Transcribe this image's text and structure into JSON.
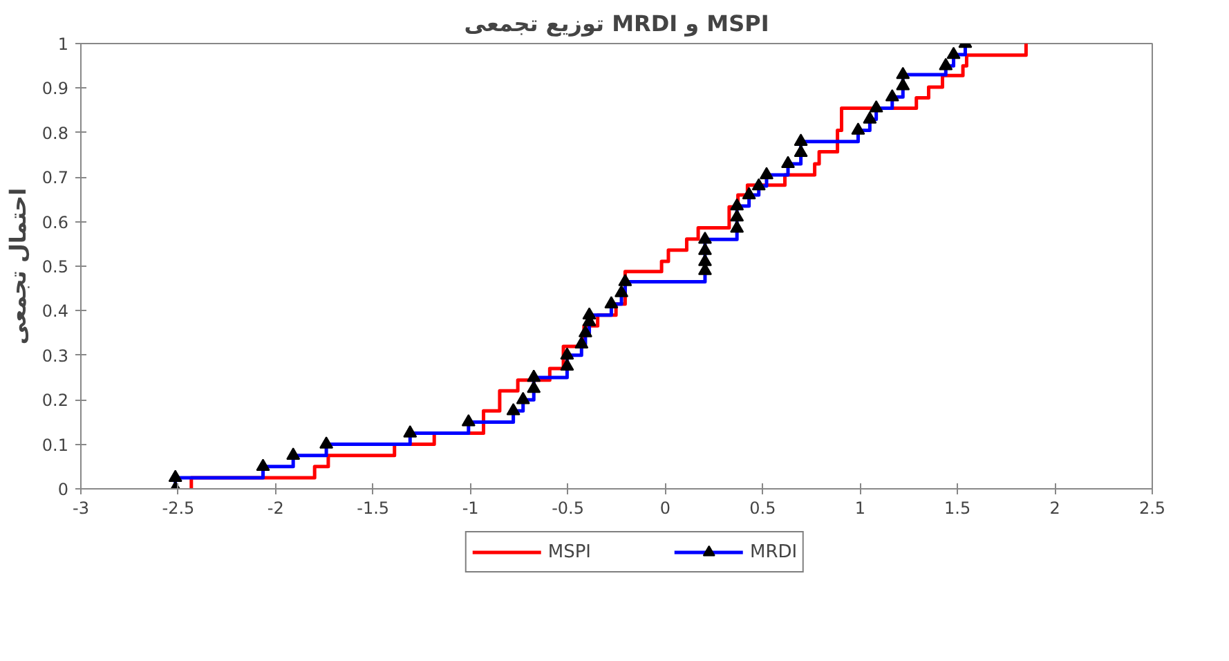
{
  "chart_data": {
    "type": "step",
    "title": "توزیع تجمعی MRDI و MSPI",
    "ylabel": "احتمال تجمعی",
    "xlim": [
      -3,
      2.5
    ],
    "xticks": [
      -3,
      -2.5,
      -2,
      -1.5,
      -1,
      -0.5,
      0,
      0.5,
      1,
      1.5,
      2,
      2.5
    ],
    "ylim": [
      0,
      1
    ],
    "yticks": [
      0,
      0.1,
      0.2,
      0.3,
      0.4,
      0.5,
      0.6,
      0.7,
      0.8,
      0.9,
      1
    ],
    "grid": false,
    "legend": "bottom",
    "series": [
      {
        "name": "MSPI",
        "color": "#ff0000",
        "marker": "none",
        "x": [
          -2.433,
          -2.433,
          -1.8,
          -1.73,
          -1.39,
          -1.186,
          -0.933,
          -0.933,
          -0.85,
          -0.85,
          -0.757,
          -0.593,
          -0.523,
          -0.523,
          -0.417,
          -0.417,
          -0.347,
          -0.253,
          -0.206,
          -0.206,
          -0.206,
          -0.019,
          0.016,
          0.11,
          0.169,
          0.328,
          0.328,
          0.373,
          0.422,
          0.614,
          0.767,
          0.79,
          0.884,
          0.884,
          0.905,
          0.905,
          1.289,
          1.352,
          1.423,
          1.528,
          1.547,
          1.852
        ],
        "values": [
          0,
          0.025,
          0.05,
          0.075,
          0.1,
          0.125,
          0.15,
          0.175,
          0.2,
          0.22,
          0.244,
          0.27,
          0.293,
          0.32,
          0.342,
          0.366,
          0.39,
          0.415,
          0.44,
          0.464,
          0.488,
          0.511,
          0.536,
          0.561,
          0.586,
          0.61,
          0.633,
          0.66,
          0.682,
          0.705,
          0.73,
          0.757,
          0.78,
          0.805,
          0.83,
          0.855,
          0.878,
          0.902,
          0.928,
          0.95,
          0.974,
          1.0
        ]
      },
      {
        "name": "MRDI",
        "color": "#0000ff",
        "marker": "triangle",
        "x": [
          -2.515,
          -2.515,
          -2.065,
          -1.91,
          -1.74,
          -1.31,
          -1.01,
          -0.78,
          -0.73,
          -0.675,
          -0.675,
          -0.504,
          -0.504,
          -0.43,
          -0.41,
          -0.39,
          -0.39,
          -0.277,
          -0.225,
          -0.206,
          0.204,
          0.204,
          0.204,
          0.204,
          0.368,
          0.368,
          0.368,
          0.43,
          0.48,
          0.52,
          0.63,
          0.696,
          0.696,
          0.99,
          1.05,
          1.083,
          1.165,
          1.22,
          1.22,
          1.44,
          1.48,
          1.54
        ],
        "values": [
          0,
          0.025,
          0.05,
          0.075,
          0.1,
          0.125,
          0.15,
          0.175,
          0.2,
          0.225,
          0.25,
          0.275,
          0.3,
          0.325,
          0.35,
          0.375,
          0.39,
          0.415,
          0.44,
          0.465,
          0.49,
          0.51,
          0.535,
          0.56,
          0.585,
          0.61,
          0.635,
          0.66,
          0.68,
          0.705,
          0.73,
          0.755,
          0.78,
          0.805,
          0.83,
          0.855,
          0.88,
          0.905,
          0.93,
          0.95,
          0.975,
          1.0
        ]
      }
    ]
  }
}
